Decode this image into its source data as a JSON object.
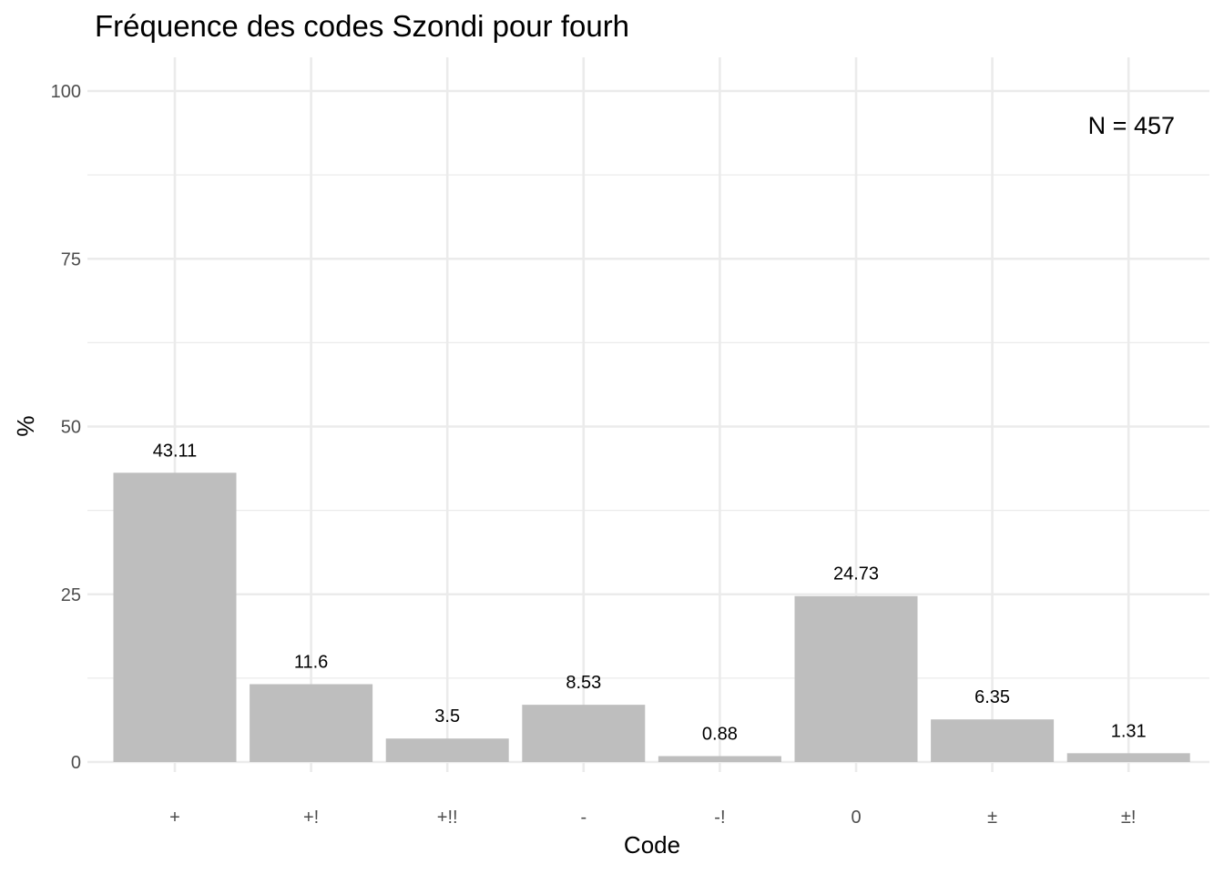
{
  "chart_data": {
    "type": "bar",
    "title": "Fréquence des codes Szondi pour fourh",
    "xlabel": "Code",
    "ylabel": "%",
    "categories": [
      "+",
      "+!",
      "+!!",
      "-",
      "-!",
      "0",
      "±",
      "±!"
    ],
    "values": [
      43.11,
      11.6,
      3.5,
      8.53,
      0.88,
      24.73,
      6.35,
      1.31
    ],
    "value_labels": [
      "43.11",
      "11.6",
      "3.5",
      "8.53",
      "0.88",
      "24.73",
      "6.35",
      "1.31"
    ],
    "ylim": [
      0,
      100
    ],
    "yticks": [
      0,
      25,
      50,
      75,
      100
    ],
    "annotation": "N = 457",
    "annotation_position": "top-right",
    "grid": true,
    "bar_color": "#bebebe",
    "grid_color": "#ebebeb"
  }
}
